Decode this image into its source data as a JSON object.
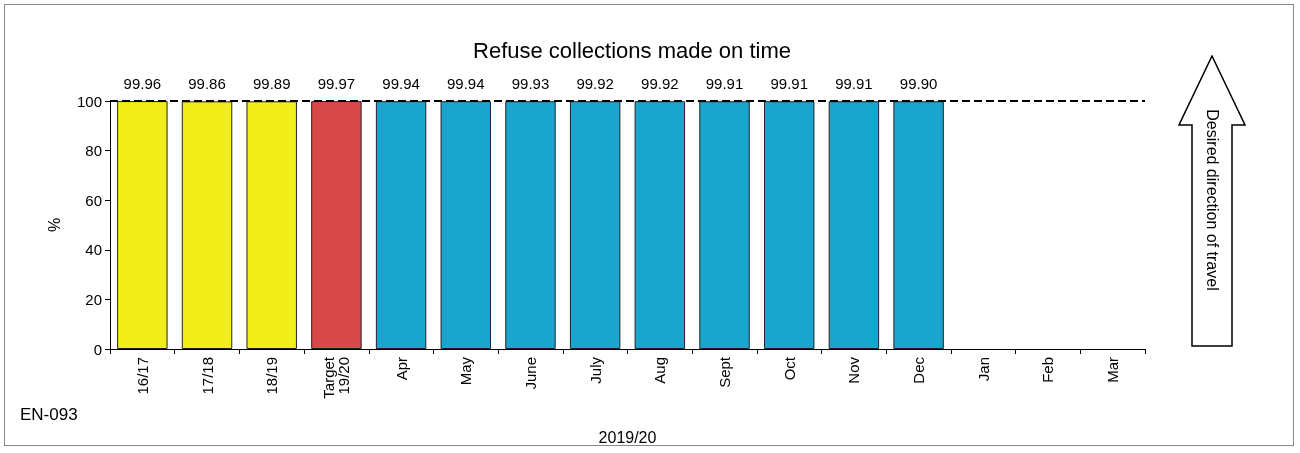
{
  "chart_data": {
    "type": "bar",
    "title": "Refuse collections made on time",
    "xlabel": "2019/20",
    "ylabel": "%",
    "categories": [
      "16/17",
      "17/18",
      "18/19",
      "Target 19/20",
      "Apr",
      "May",
      "June",
      "July",
      "Aug",
      "Sept",
      "Oct",
      "Nov",
      "Dec",
      "Jan",
      "Feb",
      "Mar"
    ],
    "values": [
      99.96,
      99.86,
      99.89,
      99.97,
      99.94,
      99.94,
      99.93,
      99.92,
      99.92,
      99.91,
      99.91,
      99.91,
      99.9,
      null,
      null,
      null
    ],
    "value_labels": [
      "99.96",
      "99.86",
      "99.89",
      "99.97",
      "99.94",
      "99.94",
      "99.93",
      "99.92",
      "99.92",
      "99.91",
      "99.91",
      "99.91",
      "99.90",
      null,
      null,
      null
    ],
    "colors": [
      "#f2ee1a",
      "#f2ee1a",
      "#f2ee1a",
      "#d94848",
      "#1aa5cf",
      "#1aa5cf",
      "#1aa5cf",
      "#1aa5cf",
      "#1aa5cf",
      "#1aa5cf",
      "#1aa5cf",
      "#1aa5cf",
      "#1aa5cf",
      "#1aa5cf",
      "#1aa5cf",
      "#1aa5cf"
    ],
    "ylim": [
      0,
      100
    ],
    "yticks": [
      0,
      20,
      40,
      60,
      80,
      100
    ],
    "grid": false,
    "ref_lines": [
      {
        "axis": "y",
        "value": 99.97,
        "color": "#000000",
        "line_style": "dashed"
      }
    ],
    "annotations": [
      "EN-093",
      "Desired direction of travel"
    ]
  }
}
